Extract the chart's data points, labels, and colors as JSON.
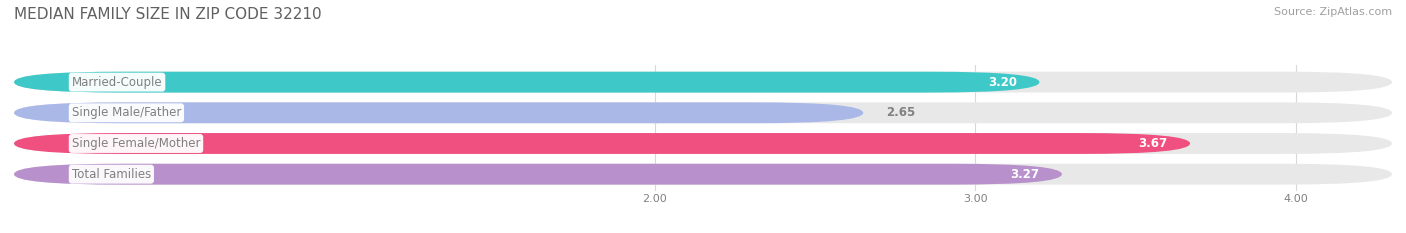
{
  "title": "MEDIAN FAMILY SIZE IN ZIP CODE 32210",
  "source": "Source: ZipAtlas.com",
  "categories": [
    "Married-Couple",
    "Single Male/Father",
    "Single Female/Mother",
    "Total Families"
  ],
  "values": [
    3.2,
    2.65,
    3.67,
    3.27
  ],
  "bar_colors": [
    "#3ec8c8",
    "#aab8e8",
    "#f05080",
    "#b890cc"
  ],
  "background_color": "#ffffff",
  "bar_bg_color": "#e8e8e8",
  "xlim_min": 0.0,
  "xlim_max": 4.3,
  "data_min": 0.0,
  "xticks": [
    2.0,
    3.0,
    4.0
  ],
  "label_color": "#808080",
  "title_color": "#606060",
  "source_color": "#a0a0a0",
  "value_color_inside": "#ffffff",
  "value_color_outside": "#808080",
  "title_fontsize": 11,
  "source_fontsize": 8,
  "label_fontsize": 8.5,
  "value_fontsize": 8.5
}
